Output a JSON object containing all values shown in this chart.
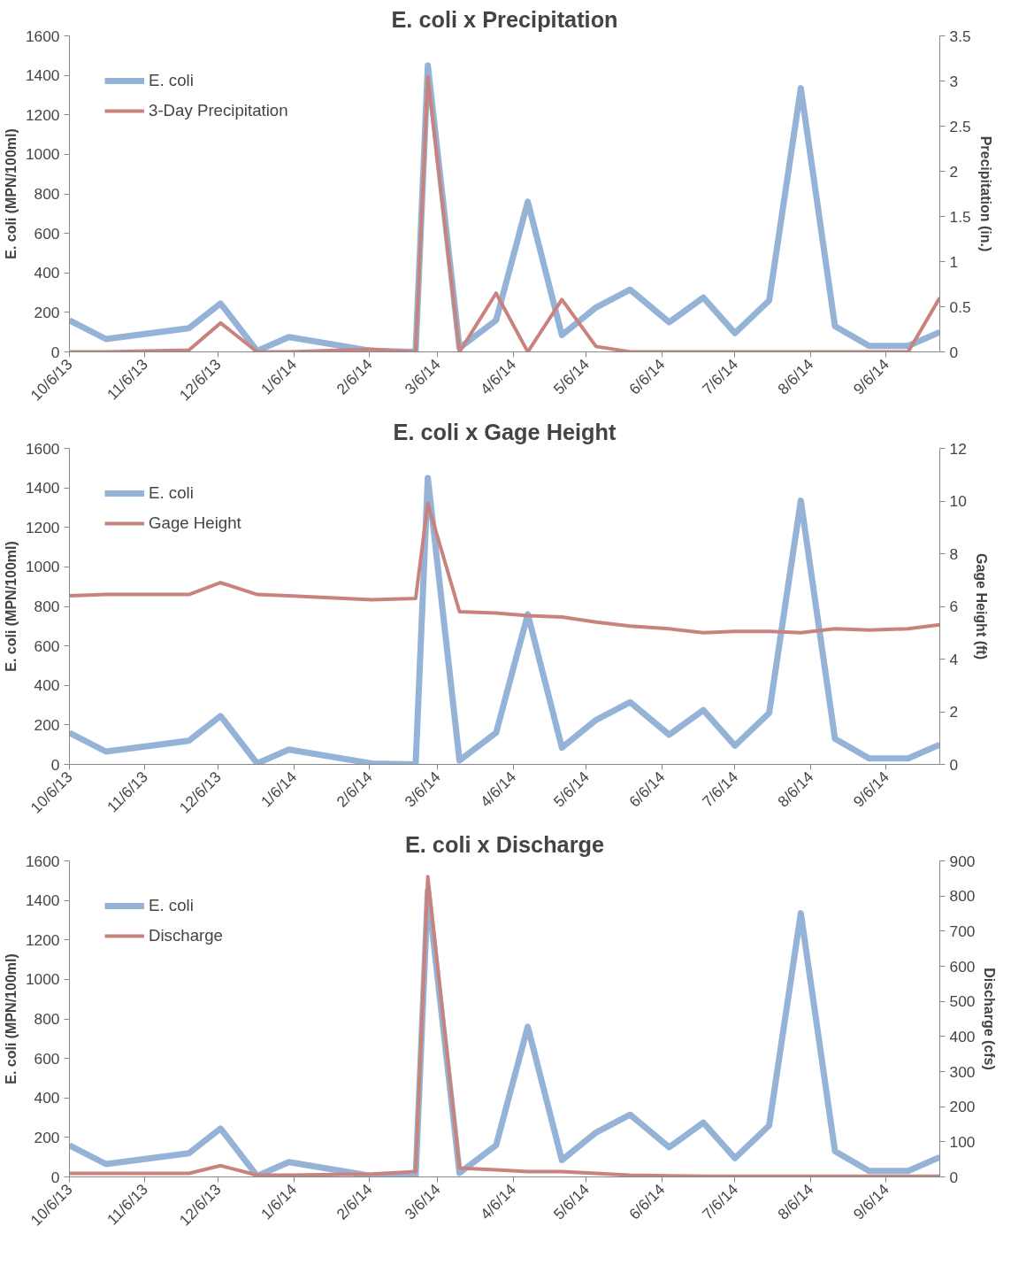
{
  "chart_data": [
    {
      "type": "line",
      "title": "E. coli x Precipitation",
      "ylabel": "E. coli (MPN/100ml)",
      "y2label": "Precipitation (in.)",
      "x": [
        "2013-10-06",
        "2013-10-21",
        "2013-11-24",
        "2013-12-07",
        "2013-12-22",
        "2014-01-04",
        "2014-02-07",
        "2014-02-25",
        "2014-03-02",
        "2014-03-15",
        "2014-03-30",
        "2014-04-12",
        "2014-04-26",
        "2014-05-10",
        "2014-05-24",
        "2014-06-09",
        "2014-06-23",
        "2014-07-06",
        "2014-07-20",
        "2014-08-02",
        "2014-08-16",
        "2014-08-30",
        "2014-09-15",
        "2014-09-28"
      ],
      "series": [
        {
          "name": "E. coli",
          "color": "#95b3d7",
          "values": [
            160,
            65,
            120,
            245,
            5,
            75,
            5,
            0,
            1450,
            20,
            160,
            760,
            85,
            225,
            315,
            150,
            275,
            95,
            260,
            1335,
            130,
            30,
            30,
            100
          ]
        },
        {
          "name": "3-Day Precipitation",
          "color": "#c9837f",
          "axis": "y2",
          "values": [
            0,
            0,
            0.02,
            0.32,
            0,
            0,
            0.03,
            0,
            3.05,
            0,
            0.65,
            0,
            0.58,
            0.06,
            0,
            0,
            0,
            0,
            0,
            0,
            0,
            0,
            0,
            0.6
          ]
        }
      ],
      "xlim": [
        "2013-10-06",
        "2014-09-28"
      ],
      "xticks": [
        {
          "value": "2013-10-06",
          "label": "10/6/13"
        },
        {
          "value": "2013-11-06",
          "label": "11/6/13"
        },
        {
          "value": "2013-12-06",
          "label": "12/6/13"
        },
        {
          "value": "2014-01-06",
          "label": "1/6/14"
        },
        {
          "value": "2014-02-06",
          "label": "2/6/14"
        },
        {
          "value": "2014-03-06",
          "label": "3/6/14"
        },
        {
          "value": "2014-04-06",
          "label": "4/6/14"
        },
        {
          "value": "2014-05-06",
          "label": "5/6/14"
        },
        {
          "value": "2014-06-06",
          "label": "6/6/14"
        },
        {
          "value": "2014-07-06",
          "label": "7/6/14"
        },
        {
          "value": "2014-08-06",
          "label": "8/6/14"
        },
        {
          "value": "2014-09-06",
          "label": "9/6/14"
        }
      ],
      "ylim": [
        0,
        1600
      ],
      "yticks": [
        0,
        200,
        400,
        600,
        800,
        1000,
        1200,
        1400,
        1600
      ],
      "y2lim": [
        0,
        3.5
      ],
      "y2ticks": [
        0,
        0.5,
        1,
        1.5,
        2,
        2.5,
        3,
        3.5
      ],
      "legend": "top left",
      "grid": false,
      "marker": "none",
      "line_style": "solid"
    },
    {
      "type": "line",
      "title": "E. coli x Gage Height",
      "ylabel": "E. coli (MPN/100ml)",
      "y2label": "Gage Height (ft)",
      "x": [
        "2013-10-06",
        "2013-10-21",
        "2013-11-24",
        "2013-12-07",
        "2013-12-22",
        "2014-01-04",
        "2014-02-07",
        "2014-02-25",
        "2014-03-02",
        "2014-03-15",
        "2014-03-30",
        "2014-04-12",
        "2014-04-26",
        "2014-05-10",
        "2014-05-24",
        "2014-06-09",
        "2014-06-23",
        "2014-07-06",
        "2014-07-20",
        "2014-08-02",
        "2014-08-16",
        "2014-08-30",
        "2014-09-15",
        "2014-09-28"
      ],
      "series": [
        {
          "name": "E. coli",
          "color": "#95b3d7",
          "values": [
            160,
            65,
            120,
            245,
            5,
            75,
            5,
            0,
            1450,
            20,
            160,
            760,
            85,
            225,
            315,
            150,
            275,
            95,
            260,
            1335,
            130,
            30,
            30,
            100
          ]
        },
        {
          "name": "Gage Height",
          "color": "#c9837f",
          "axis": "y2",
          "values": [
            6.4,
            6.45,
            6.45,
            6.9,
            6.45,
            6.4,
            6.25,
            6.3,
            9.9,
            5.8,
            5.75,
            5.65,
            5.6,
            5.4,
            5.25,
            5.15,
            5.0,
            5.05,
            5.05,
            5.0,
            5.15,
            5.1,
            5.15,
            5.3
          ]
        }
      ],
      "xlim": [
        "2013-10-06",
        "2014-09-28"
      ],
      "xticks": [
        {
          "value": "2013-10-06",
          "label": "10/6/13"
        },
        {
          "value": "2013-11-06",
          "label": "11/6/13"
        },
        {
          "value": "2013-12-06",
          "label": "12/6/13"
        },
        {
          "value": "2014-01-06",
          "label": "1/6/14"
        },
        {
          "value": "2014-02-06",
          "label": "2/6/14"
        },
        {
          "value": "2014-03-06",
          "label": "3/6/14"
        },
        {
          "value": "2014-04-06",
          "label": "4/6/14"
        },
        {
          "value": "2014-05-06",
          "label": "5/6/14"
        },
        {
          "value": "2014-06-06",
          "label": "6/6/14"
        },
        {
          "value": "2014-07-06",
          "label": "7/6/14"
        },
        {
          "value": "2014-08-06",
          "label": "8/6/14"
        },
        {
          "value": "2014-09-06",
          "label": "9/6/14"
        }
      ],
      "ylim": [
        0,
        1600
      ],
      "yticks": [
        0,
        200,
        400,
        600,
        800,
        1000,
        1200,
        1400,
        1600
      ],
      "y2lim": [
        0,
        12
      ],
      "y2ticks": [
        0,
        2,
        4,
        6,
        8,
        10,
        12
      ],
      "legend": "top left",
      "grid": false,
      "marker": "none",
      "line_style": "solid"
    },
    {
      "type": "line",
      "title": "E. coli x Discharge",
      "ylabel": "E. coli (MPN/100ml)",
      "y2label": "Discharge (cfs)",
      "x": [
        "2013-10-06",
        "2013-10-21",
        "2013-11-24",
        "2013-12-07",
        "2013-12-22",
        "2014-01-04",
        "2014-02-07",
        "2014-02-25",
        "2014-03-02",
        "2014-03-15",
        "2014-03-30",
        "2014-04-12",
        "2014-04-26",
        "2014-05-10",
        "2014-05-24",
        "2014-06-09",
        "2014-06-23",
        "2014-07-06",
        "2014-07-20",
        "2014-08-02",
        "2014-08-16",
        "2014-08-30",
        "2014-09-15",
        "2014-09-28"
      ],
      "series": [
        {
          "name": "E. coli",
          "color": "#95b3d7",
          "values": [
            160,
            65,
            120,
            245,
            5,
            75,
            5,
            0,
            1450,
            20,
            160,
            760,
            85,
            225,
            315,
            150,
            275,
            95,
            260,
            1335,
            130,
            30,
            30,
            100
          ]
        },
        {
          "name": "Discharge",
          "color": "#c9837f",
          "axis": "y2",
          "values": [
            10,
            10,
            10,
            32,
            5,
            5,
            8,
            15,
            855,
            25,
            20,
            15,
            15,
            10,
            5,
            3,
            2,
            2,
            2,
            2,
            2,
            2,
            2,
            2
          ]
        }
      ],
      "xlim": [
        "2013-10-06",
        "2014-09-28"
      ],
      "xticks": [
        {
          "value": "2013-10-06",
          "label": "10/6/13"
        },
        {
          "value": "2013-11-06",
          "label": "11/6/13"
        },
        {
          "value": "2013-12-06",
          "label": "12/6/13"
        },
        {
          "value": "2014-01-06",
          "label": "1/6/14"
        },
        {
          "value": "2014-02-06",
          "label": "2/6/14"
        },
        {
          "value": "2014-03-06",
          "label": "3/6/14"
        },
        {
          "value": "2014-04-06",
          "label": "4/6/14"
        },
        {
          "value": "2014-05-06",
          "label": "5/6/14"
        },
        {
          "value": "2014-06-06",
          "label": "6/6/14"
        },
        {
          "value": "2014-07-06",
          "label": "7/6/14"
        },
        {
          "value": "2014-08-06",
          "label": "8/6/14"
        },
        {
          "value": "2014-09-06",
          "label": "9/6/14"
        }
      ],
      "ylim": [
        0,
        1600
      ],
      "yticks": [
        0,
        200,
        400,
        600,
        800,
        1000,
        1200,
        1400,
        1600
      ],
      "y2lim": [
        0,
        900
      ],
      "y2ticks": [
        0,
        100,
        200,
        300,
        400,
        500,
        600,
        700,
        800,
        900
      ],
      "legend": "top left",
      "grid": false,
      "marker": "none",
      "line_style": "solid"
    }
  ]
}
